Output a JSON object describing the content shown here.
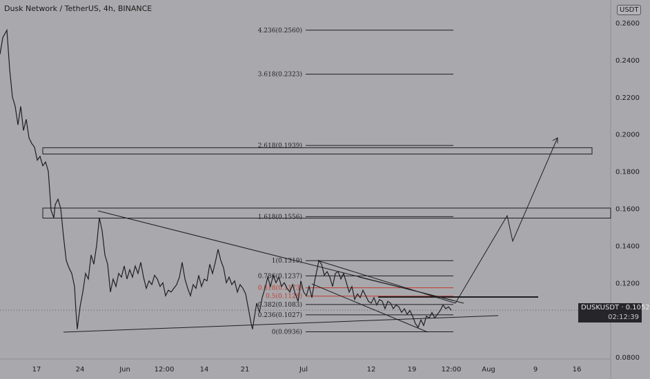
{
  "header": {
    "title": "Dusk Network / TetherUS, 4h, BINANCE",
    "unit": "USDT"
  },
  "price_tag": {
    "symbol": "DUSKUSDT",
    "value": "0.1052",
    "countdown": "02:12:39"
  },
  "colors": {
    "background": "#a9a9ad",
    "line": "#1e1e22",
    "fib_red": "#c0392b"
  },
  "chart_data": {
    "type": "line",
    "title": "",
    "xlabel": "",
    "ylabel": "",
    "ylim": [
      0.075,
      0.265
    ],
    "grid": false,
    "x_ticks": [
      {
        "label": "17",
        "px": 53
      },
      {
        "label": "24",
        "px": 116
      },
      {
        "label": "Jun",
        "px": 181
      },
      {
        "label": "12:00",
        "px": 238
      },
      {
        "label": "14",
        "px": 296
      },
      {
        "label": "21",
        "px": 355
      },
      {
        "label": "Jul",
        "px": 440
      },
      {
        "label": "12",
        "px": 538
      },
      {
        "label": "19",
        "px": 597
      },
      {
        "label": "12:00",
        "px": 654
      },
      {
        "label": "Aug",
        "px": 708
      },
      {
        "label": "9",
        "px": 776
      },
      {
        "label": "16",
        "px": 836
      }
    ],
    "y_ticks": [
      "0.2600",
      "0.2400",
      "0.2200",
      "0.2000",
      "0.1800",
      "0.1600",
      "0.1400",
      "0.1200",
      "0.0800"
    ],
    "y_tick_values": [
      0.26,
      0.24,
      0.22,
      0.2,
      0.18,
      0.16,
      0.14,
      0.12,
      0.08
    ],
    "series": [
      {
        "values_x": [
          0,
          4,
          10,
          14,
          18,
          22,
          26,
          30,
          34,
          38,
          42,
          46,
          50,
          54,
          58,
          62,
          66,
          70,
          74,
          78,
          80,
          84,
          88,
          92,
          96,
          100,
          104,
          108,
          110,
          112,
          116,
          120,
          124,
          128,
          132,
          136,
          140,
          144,
          148,
          152,
          156,
          160,
          164,
          168,
          172,
          176,
          180,
          184,
          188,
          192,
          196,
          200,
          204,
          208,
          212,
          216,
          220,
          224,
          228,
          232,
          236,
          240,
          244,
          248,
          252,
          256,
          260,
          264,
          268,
          272,
          276,
          280,
          284,
          288,
          292,
          296,
          300,
          304,
          308,
          312,
          316,
          320,
          324,
          328,
          332,
          336,
          340,
          344,
          348,
          352,
          356,
          360,
          364,
          366,
          368,
          372,
          376,
          380,
          384,
          388,
          392,
          396,
          400,
          404,
          408,
          412,
          416,
          420,
          424,
          428,
          432,
          436,
          440,
          444,
          448,
          452,
          456,
          460,
          462,
          466,
          470,
          474,
          478,
          482,
          486,
          490,
          494,
          498,
          502,
          506,
          510,
          514,
          518,
          522,
          526,
          530,
          534,
          538,
          542,
          546,
          550,
          554,
          558,
          562,
          566,
          570,
          574,
          578,
          582,
          586,
          590,
          594,
          598,
          602,
          606,
          610,
          614,
          618,
          622,
          626,
          630,
          634,
          638,
          642,
          646,
          650,
          654
        ],
        "values_y": [
          0.243,
          0.252,
          0.256,
          0.235,
          0.22,
          0.215,
          0.205,
          0.215,
          0.202,
          0.208,
          0.198,
          0.195,
          0.193,
          0.186,
          0.188,
          0.183,
          0.185,
          0.18,
          0.159,
          0.155,
          0.162,
          0.165,
          0.16,
          0.145,
          0.132,
          0.128,
          0.125,
          0.118,
          0.105,
          0.095,
          0.107,
          0.115,
          0.125,
          0.122,
          0.135,
          0.13,
          0.14,
          0.155,
          0.148,
          0.135,
          0.13,
          0.115,
          0.122,
          0.118,
          0.125,
          0.123,
          0.129,
          0.122,
          0.127,
          0.123,
          0.129,
          0.125,
          0.131,
          0.123,
          0.117,
          0.121,
          0.119,
          0.124,
          0.122,
          0.118,
          0.12,
          0.113,
          0.116,
          0.115,
          0.117,
          0.119,
          0.123,
          0.131,
          0.122,
          0.117,
          0.113,
          0.119,
          0.117,
          0.124,
          0.118,
          0.122,
          0.121,
          0.13,
          0.125,
          0.131,
          0.138,
          0.132,
          0.128,
          0.12,
          0.123,
          0.119,
          0.121,
          0.115,
          0.119,
          0.117,
          0.114,
          0.106,
          0.098,
          0.095,
          0.1,
          0.109,
          0.104,
          0.112,
          0.117,
          0.123,
          0.118,
          0.124,
          0.12,
          0.123,
          0.118,
          0.12,
          0.117,
          0.115,
          0.119,
          0.114,
          0.11,
          0.121,
          0.115,
          0.113,
          0.118,
          0.112,
          0.121,
          0.128,
          0.132,
          0.13,
          0.124,
          0.126,
          0.123,
          0.118,
          0.125,
          0.126,
          0.122,
          0.125,
          0.12,
          0.115,
          0.118,
          0.111,
          0.114,
          0.112,
          0.116,
          0.113,
          0.11,
          0.109,
          0.112,
          0.108,
          0.111,
          0.11,
          0.106,
          0.11,
          0.109,
          0.106,
          0.108,
          0.107,
          0.104,
          0.106,
          0.103,
          0.105,
          0.102,
          0.098,
          0.096,
          0.1,
          0.097,
          0.102,
          0.101,
          0.104,
          0.101,
          0.103,
          0.105,
          0.108,
          0.106,
          0.107,
          0.1052
        ]
      }
    ],
    "fib_levels": [
      {
        "label": "4.236(0.2560)",
        "value": 0.256,
        "color": "dark"
      },
      {
        "label": "3.618(0.2323)",
        "value": 0.2323,
        "color": "dark"
      },
      {
        "label": "2.618(0.1939)",
        "value": 0.1939,
        "color": "dark"
      },
      {
        "label": "1.618(0.1556)",
        "value": 0.1556,
        "color": "dark"
      },
      {
        "label": "1(0.1319)",
        "value": 0.1319,
        "color": "dark"
      },
      {
        "label": "0.786(0.1237)",
        "value": 0.1237,
        "color": "dark"
      },
      {
        "label": "0.618(0.1173)",
        "value": 0.1173,
        "color": "red"
      },
      {
        "label": "0.5(0.1128)",
        "value": 0.1128,
        "color": "red"
      },
      {
        "label": "0.382(0.1083)",
        "value": 0.1083,
        "color": "dark"
      },
      {
        "label": "0.236(0.1027)",
        "value": 0.1027,
        "color": "dark"
      },
      {
        "label": "0(0.0936)",
        "value": 0.0936,
        "color": "dark"
      }
    ],
    "zones": [
      {
        "top": 0.1927,
        "bottom": 0.1893
      },
      {
        "top": 0.1602,
        "bottom": 0.1548
      }
    ]
  }
}
